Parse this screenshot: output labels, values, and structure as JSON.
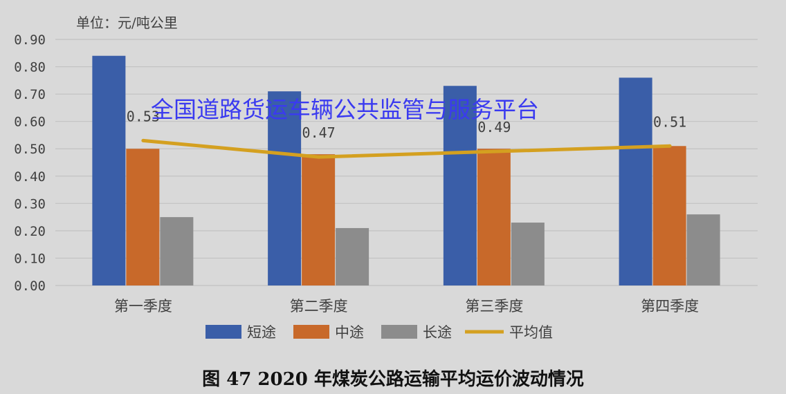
{
  "unit_label": "单位：元/吨公里",
  "watermark": "全国道路货运车辆公共监管与服务平台",
  "caption": "图 47  2020 年煤炭公路运输平均运价波动情况",
  "colors": {
    "background": "#d9d9d9",
    "short": "#3a5ea8",
    "medium": "#c8692a",
    "long": "#8c8c8c",
    "average": "#d4a020",
    "grid": "#c2c2c2"
  },
  "chart_data": {
    "type": "bar",
    "categories": [
      "第一季度",
      "第二季度",
      "第三季度",
      "第四季度"
    ],
    "ylim": [
      0,
      0.9
    ],
    "yticks": [
      "0.00",
      "0.10",
      "0.20",
      "0.30",
      "0.40",
      "0.50",
      "0.60",
      "0.70",
      "0.80",
      "0.90"
    ],
    "grid": true,
    "legend_position": "bottom",
    "series": [
      {
        "name": "短途",
        "type": "bar",
        "values": [
          0.84,
          0.71,
          0.73,
          0.76
        ]
      },
      {
        "name": "中途",
        "type": "bar",
        "values": [
          0.5,
          0.48,
          0.5,
          0.51
        ]
      },
      {
        "name": "长途",
        "type": "bar",
        "values": [
          0.25,
          0.21,
          0.23,
          0.26
        ]
      },
      {
        "name": "平均值",
        "type": "line",
        "values": [
          0.53,
          0.47,
          0.49,
          0.51
        ],
        "labels": [
          "0.53",
          "0.47",
          "0.49",
          "0.51"
        ]
      }
    ]
  }
}
